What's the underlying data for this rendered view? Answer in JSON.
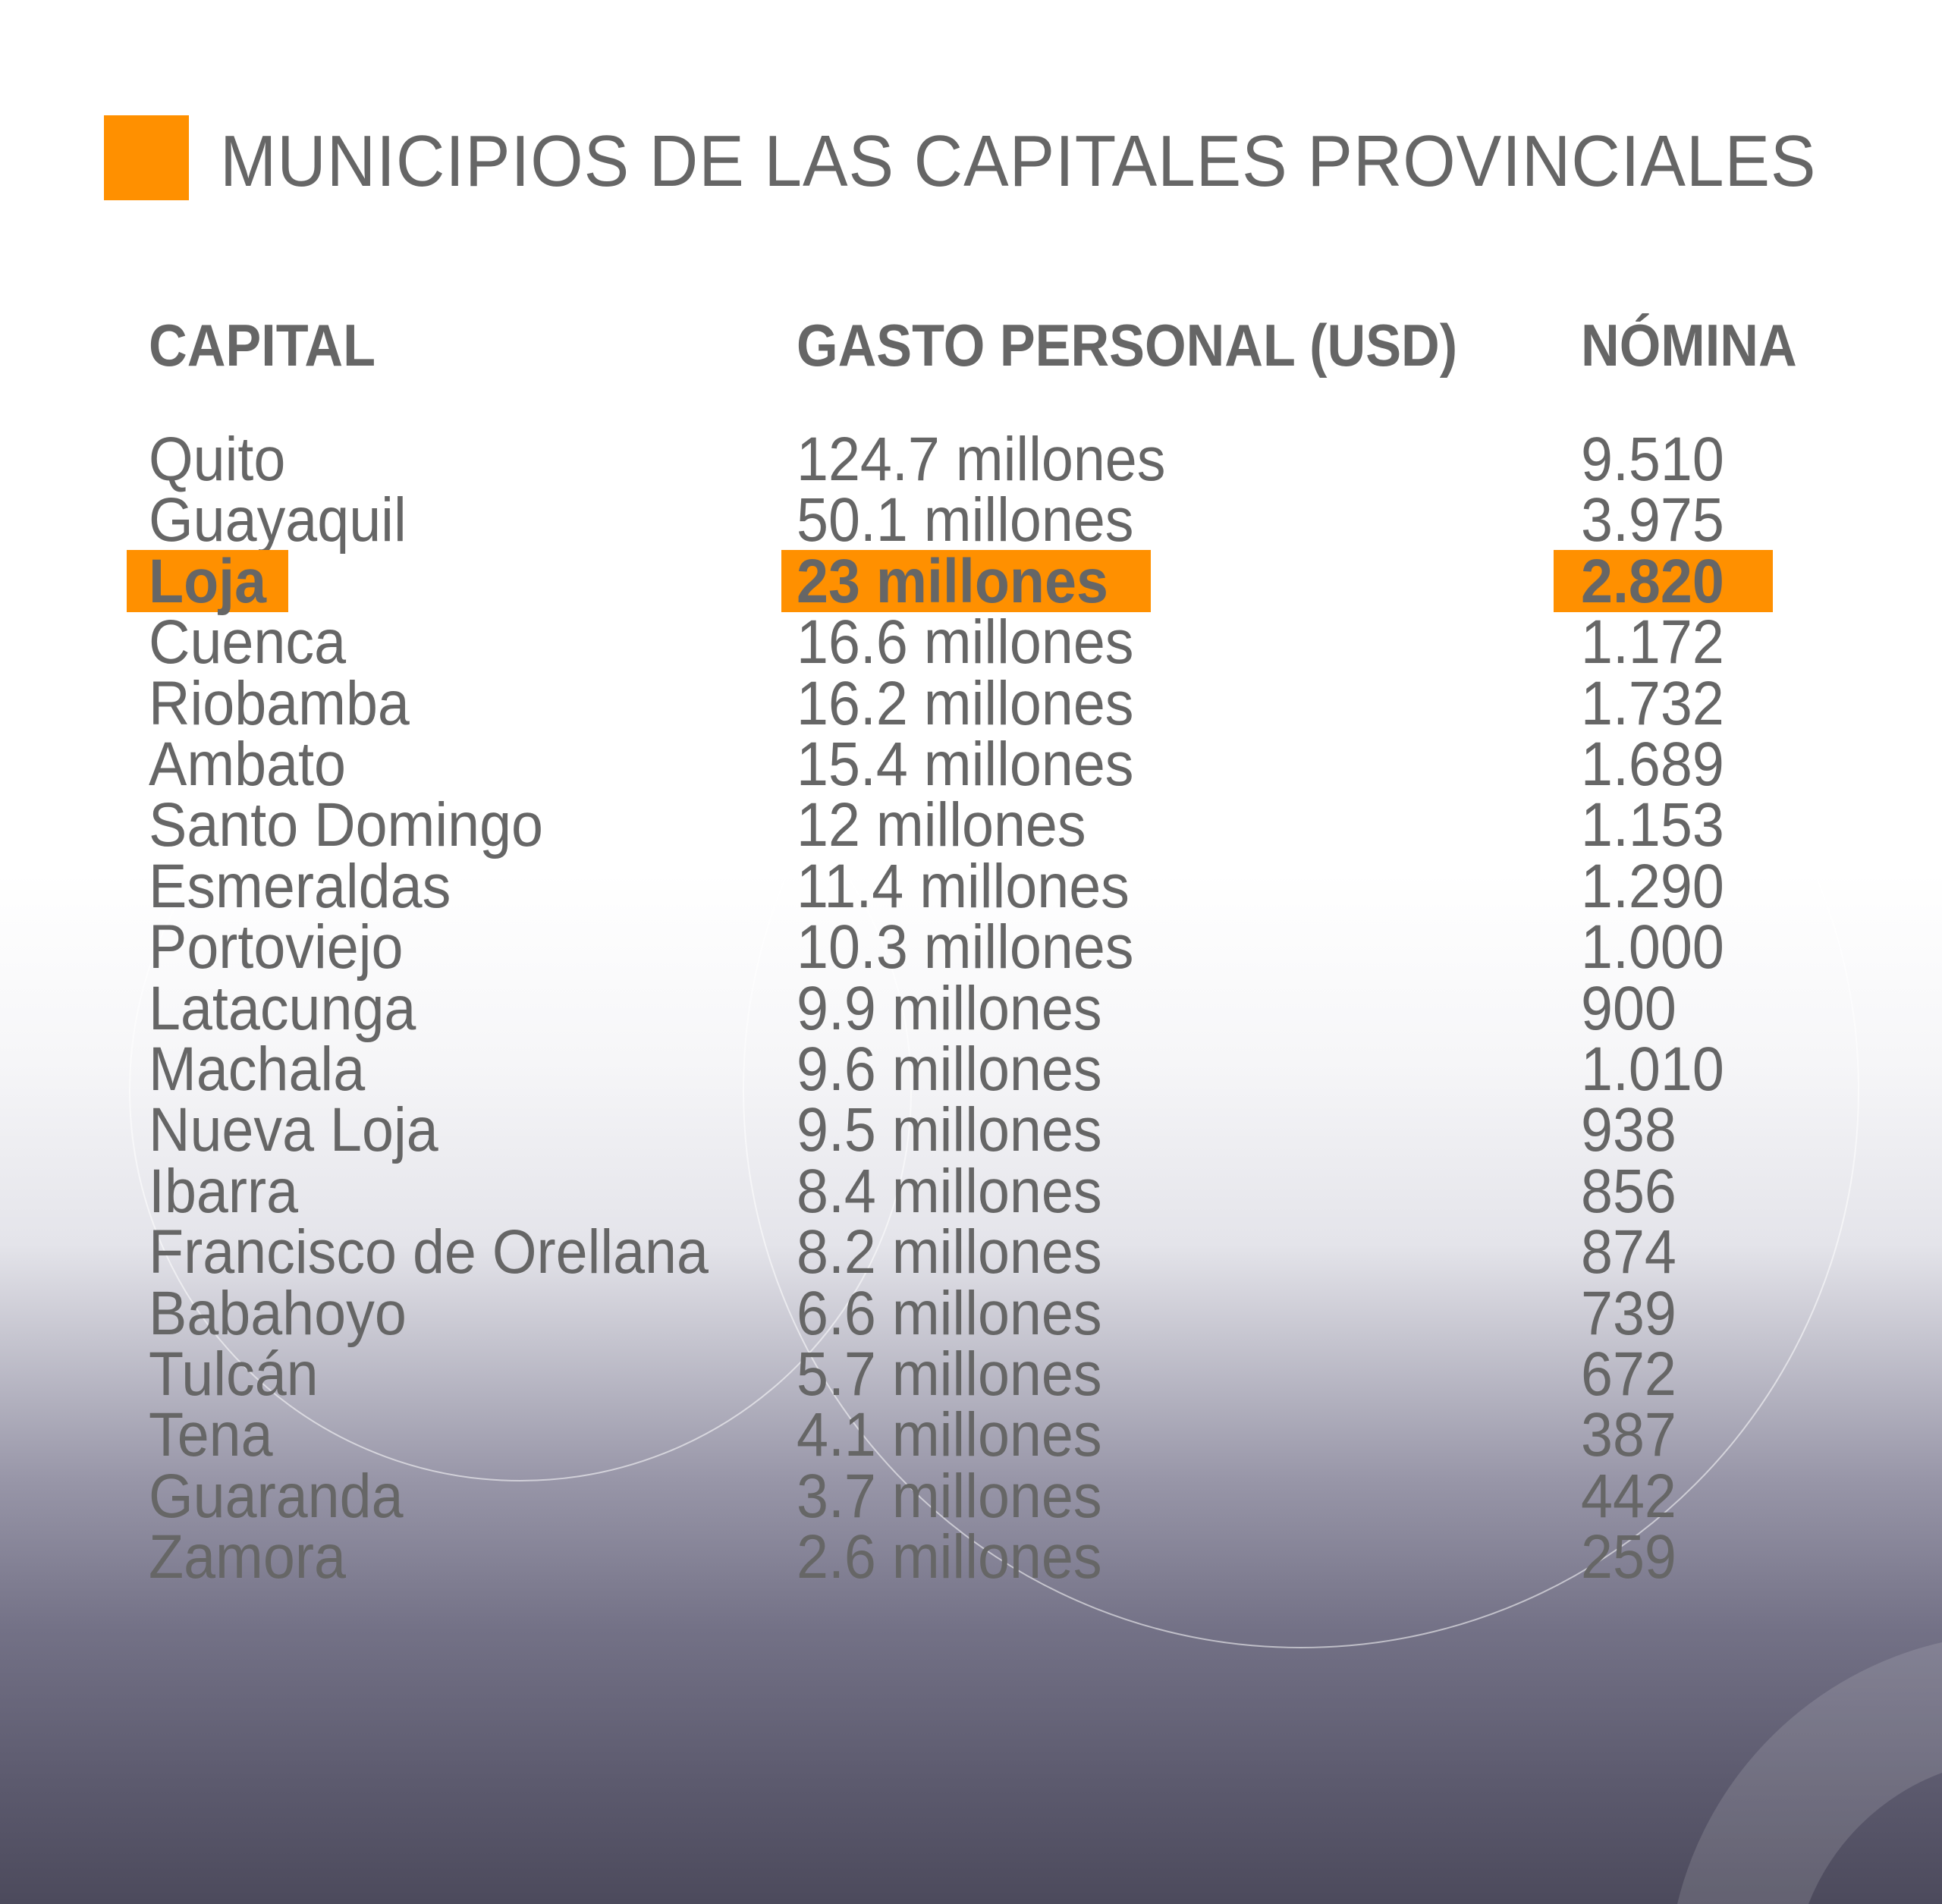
{
  "title": "MUNICIPIOS DE LAS CAPITALES PROVINCIALES",
  "colors": {
    "accent": "#ff9000",
    "text": "#666666"
  },
  "headers": {
    "capital": "CAPITAL",
    "gasto": "GASTO PERSONAL (USD)",
    "nomina": "NÓMINA"
  },
  "highlighted_row": "Loja",
  "rows": [
    {
      "capital": "Quito",
      "gasto": "124.7 millones",
      "nomina": "9.510"
    },
    {
      "capital": "Guayaquil",
      "gasto": "50.1 millones",
      "nomina": "3.975"
    },
    {
      "capital": "Loja",
      "gasto": "23 millones",
      "nomina": "2.820"
    },
    {
      "capital": "Cuenca",
      "gasto": "16.6 millones",
      "nomina": "1.172"
    },
    {
      "capital": "Riobamba",
      "gasto": "16.2 millones",
      "nomina": "1.732"
    },
    {
      "capital": "Ambato",
      "gasto": "15.4 millones",
      "nomina": "1.689"
    },
    {
      "capital": "Santo Domingo",
      "gasto": "12 millones",
      "nomina": "1.153"
    },
    {
      "capital": "Esmeraldas",
      "gasto": "11.4 millones",
      "nomina": "1.290"
    },
    {
      "capital": "Portoviejo",
      "gasto": "10.3 millones",
      "nomina": "1.000"
    },
    {
      "capital": "Latacunga",
      "gasto": "9.9 millones",
      "nomina": "900"
    },
    {
      "capital": "Machala",
      "gasto": "9.6 millones",
      "nomina": "1.010"
    },
    {
      "capital": "Nueva Loja",
      "gasto": "9.5 millones",
      "nomina": "938"
    },
    {
      "capital": "Ibarra",
      "gasto": "8.4 millones",
      "nomina": "856"
    },
    {
      "capital": "Francisco de Orellana",
      "gasto": "8.2 millones",
      "nomina": "874"
    },
    {
      "capital": "Babahoyo",
      "gasto": "6.6 millones",
      "nomina": "739"
    },
    {
      "capital": "Tulcán",
      "gasto": "5.7 millones",
      "nomina": "672"
    },
    {
      "capital": "Tena",
      "gasto": "4.1 millones",
      "nomina": "387"
    },
    {
      "capital": "Guaranda",
      "gasto": "3.7 millones",
      "nomina": "442"
    },
    {
      "capital": "Zamora",
      "gasto": "2.6 millones",
      "nomina": "259"
    }
  ]
}
